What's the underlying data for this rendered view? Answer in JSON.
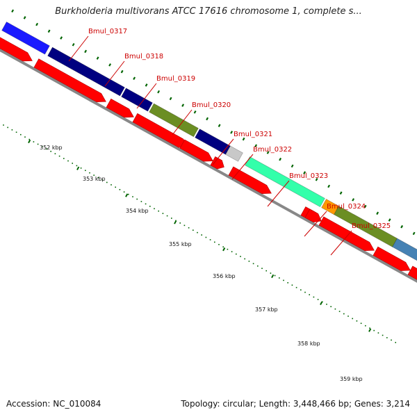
{
  "header": {
    "title": "Burkholderia multivorans ATCC 17616 chromosome 1, complete s..."
  },
  "footer": {
    "accession": "Accession: NC_010084",
    "summary": "Topology: circular; Length: 3,448,466 bp; Genes: 3,214"
  },
  "colors": {
    "reverse_cds": "#ff0000",
    "backbone": "#888888",
    "tick": "#006400",
    "gene_label": "#cc0000",
    "gene_blue": "#1a1aff",
    "gene_navy": "#000080",
    "gene_olive": "#6b8e23",
    "gene_grey": "#c8c8c8",
    "gene_aqua": "#33ffaa",
    "gene_orange": "#ff9900",
    "gene_steel": "#4682b4"
  },
  "gene_labels": [
    {
      "id": "Bmul_0317",
      "text": "Bmul_0317"
    },
    {
      "id": "Bmul_0318",
      "text": "Bmul_0318"
    },
    {
      "id": "Bmul_0319",
      "text": "Bmul_0319"
    },
    {
      "id": "Bmul_0320",
      "text": "Bmul_0320"
    },
    {
      "id": "Bmul_0321",
      "text": "Bmul_0321"
    },
    {
      "id": "Bmul_0322",
      "text": "Bmul_0322"
    },
    {
      "id": "Bmul_0323",
      "text": "Bmul_0323"
    },
    {
      "id": "Bmul_0324",
      "text": "Bmul_0324"
    },
    {
      "id": "Bmul_0325",
      "text": "Bmul_0325"
    }
  ],
  "kbp_labels": [
    "352 kbp",
    "353 kbp",
    "354 kbp",
    "355 kbp",
    "356 kbp",
    "357 kbp",
    "358 kbp",
    "359 kbp"
  ]
}
